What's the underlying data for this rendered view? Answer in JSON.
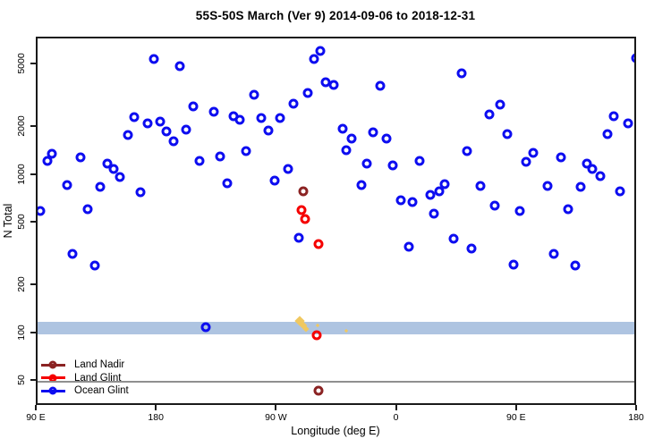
{
  "title": "55S-50S March (Ver 9)   2014-09-06 to 2018-12-31",
  "chart_data": {
    "type": "scatter",
    "title": "55S-50S March (Ver 9)   2014-09-06 to 2018-12-31",
    "xlabel": "Longitude (deg E)",
    "ylabel": "N Total",
    "x_axis": {
      "type": "linear",
      "range": [
        90,
        540
      ],
      "note": "longitude wraps eastward from 90E through 180, 90W, 0, 90E to 180",
      "ticks": [
        {
          "pos": 90,
          "label": "90 E"
        },
        {
          "pos": 180,
          "label": "180"
        },
        {
          "pos": 270,
          "label": "90 W"
        },
        {
          "pos": 360,
          "label": "0"
        },
        {
          "pos": 450,
          "label": "90 E"
        },
        {
          "pos": 540,
          "label": "180"
        }
      ]
    },
    "y_axis": {
      "type": "log",
      "range": [
        34.7,
        7380
      ],
      "ticks": [
        50,
        100,
        200,
        500,
        1000,
        2000,
        5000
      ]
    },
    "band": {
      "from": 100,
      "to": 120,
      "color": "#AEC4E1"
    },
    "ref_line": {
      "value": 50,
      "color": "#8F8F8F"
    },
    "series": [
      {
        "name": "Land Nadir",
        "color": "#8B2323",
        "points": [
          [
            289,
            799
          ],
          [
            300.5,
            44
          ]
        ]
      },
      {
        "name": "Land Glint",
        "color": "#F50000",
        "points": [
          [
            288,
            608
          ],
          [
            290.5,
            533
          ],
          [
            300.5,
            370
          ],
          [
            299,
            98
          ]
        ]
      },
      {
        "name": "Ocean Glint",
        "color": "#0D0DF0",
        "points": [
          [
            177,
            5470
          ],
          [
            196.5,
            4930
          ],
          [
            206.5,
            2750
          ],
          [
            222,
            2540
          ],
          [
            237,
            2380
          ],
          [
            241.5,
            2260
          ],
          [
            162.5,
            2350
          ],
          [
            172.5,
            2150
          ],
          [
            182,
            2200
          ],
          [
            186.5,
            1910
          ],
          [
            192,
            1660
          ],
          [
            201.5,
            1960
          ],
          [
            157.5,
            1810
          ],
          [
            100.5,
            1380
          ],
          [
            97.5,
            1240
          ],
          [
            122,
            1310
          ],
          [
            142.5,
            1190
          ],
          [
            147,
            1100
          ],
          [
            151.5,
            983
          ],
          [
            112,
            874
          ],
          [
            137,
            852
          ],
          [
            167,
            788
          ],
          [
            211.5,
            1240
          ],
          [
            226.5,
            1330
          ],
          [
            232,
            898
          ],
          [
            127.5,
            616
          ],
          [
            92,
            599
          ],
          [
            302,
            6150
          ],
          [
            297,
            5470
          ],
          [
            306,
            3900
          ],
          [
            312,
            3760
          ],
          [
            347,
            3720
          ],
          [
            252.5,
            3250
          ],
          [
            292.5,
            3340
          ],
          [
            282,
            2860
          ],
          [
            257.5,
            2320
          ],
          [
            271.5,
            2320
          ],
          [
            263,
            1930
          ],
          [
            318.5,
            1985
          ],
          [
            325.5,
            1720
          ],
          [
            321.5,
            1450
          ],
          [
            341.5,
            1880
          ],
          [
            351.5,
            1720
          ],
          [
            246,
            1435
          ],
          [
            337,
            1190
          ],
          [
            356,
            1160
          ],
          [
            376.5,
            1240
          ],
          [
            278,
            1100
          ],
          [
            267.5,
            933
          ],
          [
            333,
            874
          ],
          [
            362,
            701
          ],
          [
            371,
            683
          ],
          [
            384.5,
            758
          ],
          [
            391,
            799
          ],
          [
            395,
            886
          ],
          [
            387,
            577
          ],
          [
            538.5,
            5540
          ],
          [
            408,
            4450
          ],
          [
            436.5,
            2830
          ],
          [
            428.5,
            2440
          ],
          [
            442,
            1840
          ],
          [
            522,
            2380
          ],
          [
            532.5,
            2150
          ],
          [
            517,
            1840
          ],
          [
            412,
            1435
          ],
          [
            461.5,
            1400
          ],
          [
            456,
            1220
          ],
          [
            482.5,
            1310
          ],
          [
            501.5,
            1190
          ],
          [
            506,
            1100
          ],
          [
            512,
            995
          ],
          [
            422,
            863
          ],
          [
            472,
            863
          ],
          [
            497,
            852
          ],
          [
            526.5,
            799
          ],
          [
            432.5,
            649
          ],
          [
            451.5,
            599
          ],
          [
            487.5,
            616
          ],
          [
            116,
            321
          ],
          [
            133,
            271
          ],
          [
            216,
            110
          ],
          [
            286,
            406
          ],
          [
            368.5,
            356
          ],
          [
            402,
            401
          ],
          [
            415,
            347
          ],
          [
            447,
            275
          ],
          [
            477,
            321
          ],
          [
            493,
            271
          ]
        ]
      }
    ],
    "extra_marks": {
      "name": "yellow-marks",
      "color": "#F0C860",
      "points": [
        [
          286.5,
          121,
          8
        ],
        [
          289,
          113,
          6
        ],
        [
          291,
          108,
          5
        ],
        [
          300,
          113,
          3
        ],
        [
          321.5,
          105,
          3
        ]
      ]
    },
    "legend_position": "bottom-left"
  },
  "legend": {
    "items": [
      {
        "label": "Land Nadir",
        "color": "#8B2323"
      },
      {
        "label": "Land Glint",
        "color": "#F50000"
      },
      {
        "label": "Ocean Glint",
        "color": "#0D0DF0"
      }
    ]
  }
}
